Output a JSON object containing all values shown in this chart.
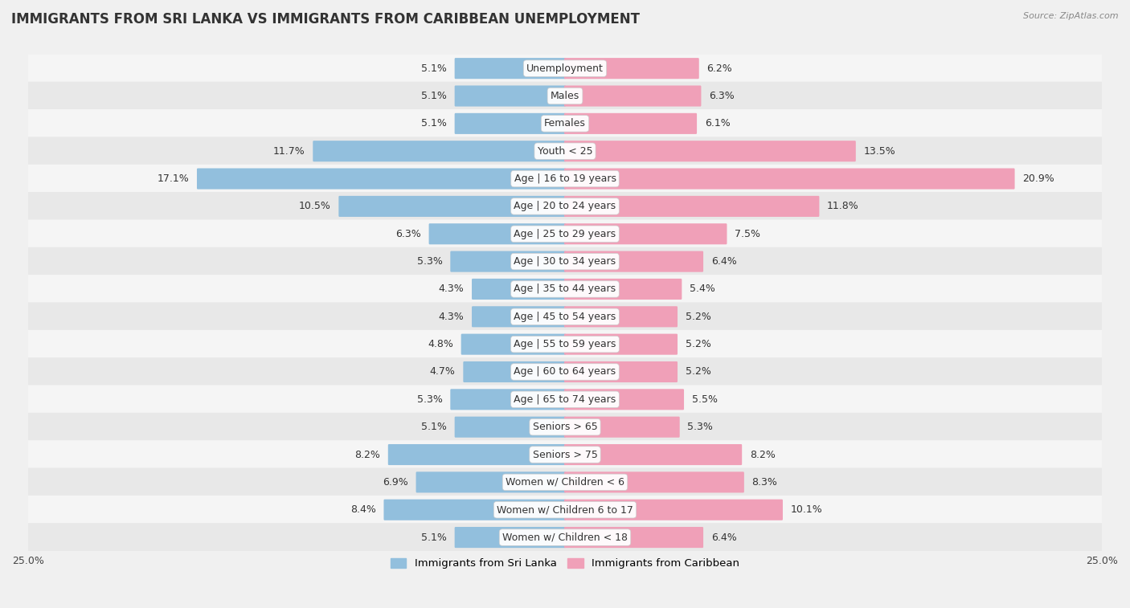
{
  "title": "IMMIGRANTS FROM SRI LANKA VS IMMIGRANTS FROM CARIBBEAN UNEMPLOYMENT",
  "source": "Source: ZipAtlas.com",
  "categories": [
    "Unemployment",
    "Males",
    "Females",
    "Youth < 25",
    "Age | 16 to 19 years",
    "Age | 20 to 24 years",
    "Age | 25 to 29 years",
    "Age | 30 to 34 years",
    "Age | 35 to 44 years",
    "Age | 45 to 54 years",
    "Age | 55 to 59 years",
    "Age | 60 to 64 years",
    "Age | 65 to 74 years",
    "Seniors > 65",
    "Seniors > 75",
    "Women w/ Children < 6",
    "Women w/ Children 6 to 17",
    "Women w/ Children < 18"
  ],
  "sri_lanka_values": [
    5.1,
    5.1,
    5.1,
    11.7,
    17.1,
    10.5,
    6.3,
    5.3,
    4.3,
    4.3,
    4.8,
    4.7,
    5.3,
    5.1,
    8.2,
    6.9,
    8.4,
    5.1
  ],
  "caribbean_values": [
    6.2,
    6.3,
    6.1,
    13.5,
    20.9,
    11.8,
    7.5,
    6.4,
    5.4,
    5.2,
    5.2,
    5.2,
    5.5,
    5.3,
    8.2,
    8.3,
    10.1,
    6.4
  ],
  "sri_lanka_color": "#92bfdd",
  "caribbean_color": "#f0a0b8",
  "row_color_even": "#f5f5f5",
  "row_color_odd": "#e8e8e8",
  "background_color": "#f0f0f0",
  "xlim": 25.0,
  "legend_label_sri_lanka": "Immigrants from Sri Lanka",
  "legend_label_caribbean": "Immigrants from Caribbean",
  "bar_height": 0.68,
  "title_fontsize": 12,
  "value_fontsize": 9,
  "category_fontsize": 9
}
